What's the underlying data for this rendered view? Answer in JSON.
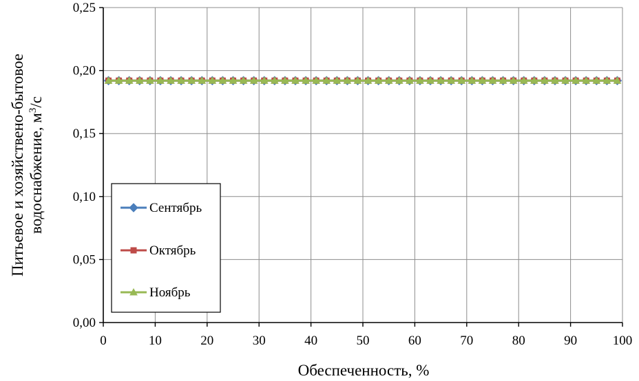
{
  "chart_data": {
    "type": "line",
    "title": "",
    "xlabel": "Обеспеченность, %",
    "ylabel": {
      "line1": "Питьевое и хозяйствено-бытовое",
      "line2_prefix": "водоснабжение, м",
      "line2_sup": "3",
      "line2_suffix": "/с"
    },
    "xlim": [
      0,
      100
    ],
    "ylim": [
      0,
      0.25
    ],
    "xticks": [
      0,
      10,
      20,
      30,
      40,
      50,
      60,
      70,
      80,
      90,
      100
    ],
    "yticks": [
      0,
      0.05,
      0.1,
      0.15,
      0.2,
      0.25
    ],
    "ytick_labels": [
      "0,00",
      "0,05",
      "0,10",
      "0,15",
      "0,20",
      "0,25"
    ],
    "xtick_labels": [
      "0",
      "10",
      "20",
      "30",
      "40",
      "50",
      "60",
      "70",
      "80",
      "90",
      "100"
    ],
    "grid": true,
    "legend_position": "lower-left",
    "x": [
      1,
      3,
      5,
      7,
      9,
      11,
      13,
      15,
      17,
      19,
      21,
      23,
      25,
      27,
      29,
      31,
      33,
      35,
      37,
      39,
      41,
      43,
      45,
      47,
      49,
      51,
      53,
      55,
      57,
      59,
      61,
      63,
      65,
      67,
      69,
      71,
      73,
      75,
      77,
      79,
      81,
      83,
      85,
      87,
      89,
      91,
      93,
      95,
      97,
      99
    ],
    "series": [
      {
        "name": "Сентябрь",
        "color": "#4a7ebb",
        "marker": "diamond",
        "value": 0.192
      },
      {
        "name": "Октябрь",
        "color": "#be4b48",
        "marker": "square",
        "value": 0.192
      },
      {
        "name": "Ноябрь",
        "color": "#98b954",
        "marker": "triangle",
        "value": 0.192
      }
    ]
  }
}
